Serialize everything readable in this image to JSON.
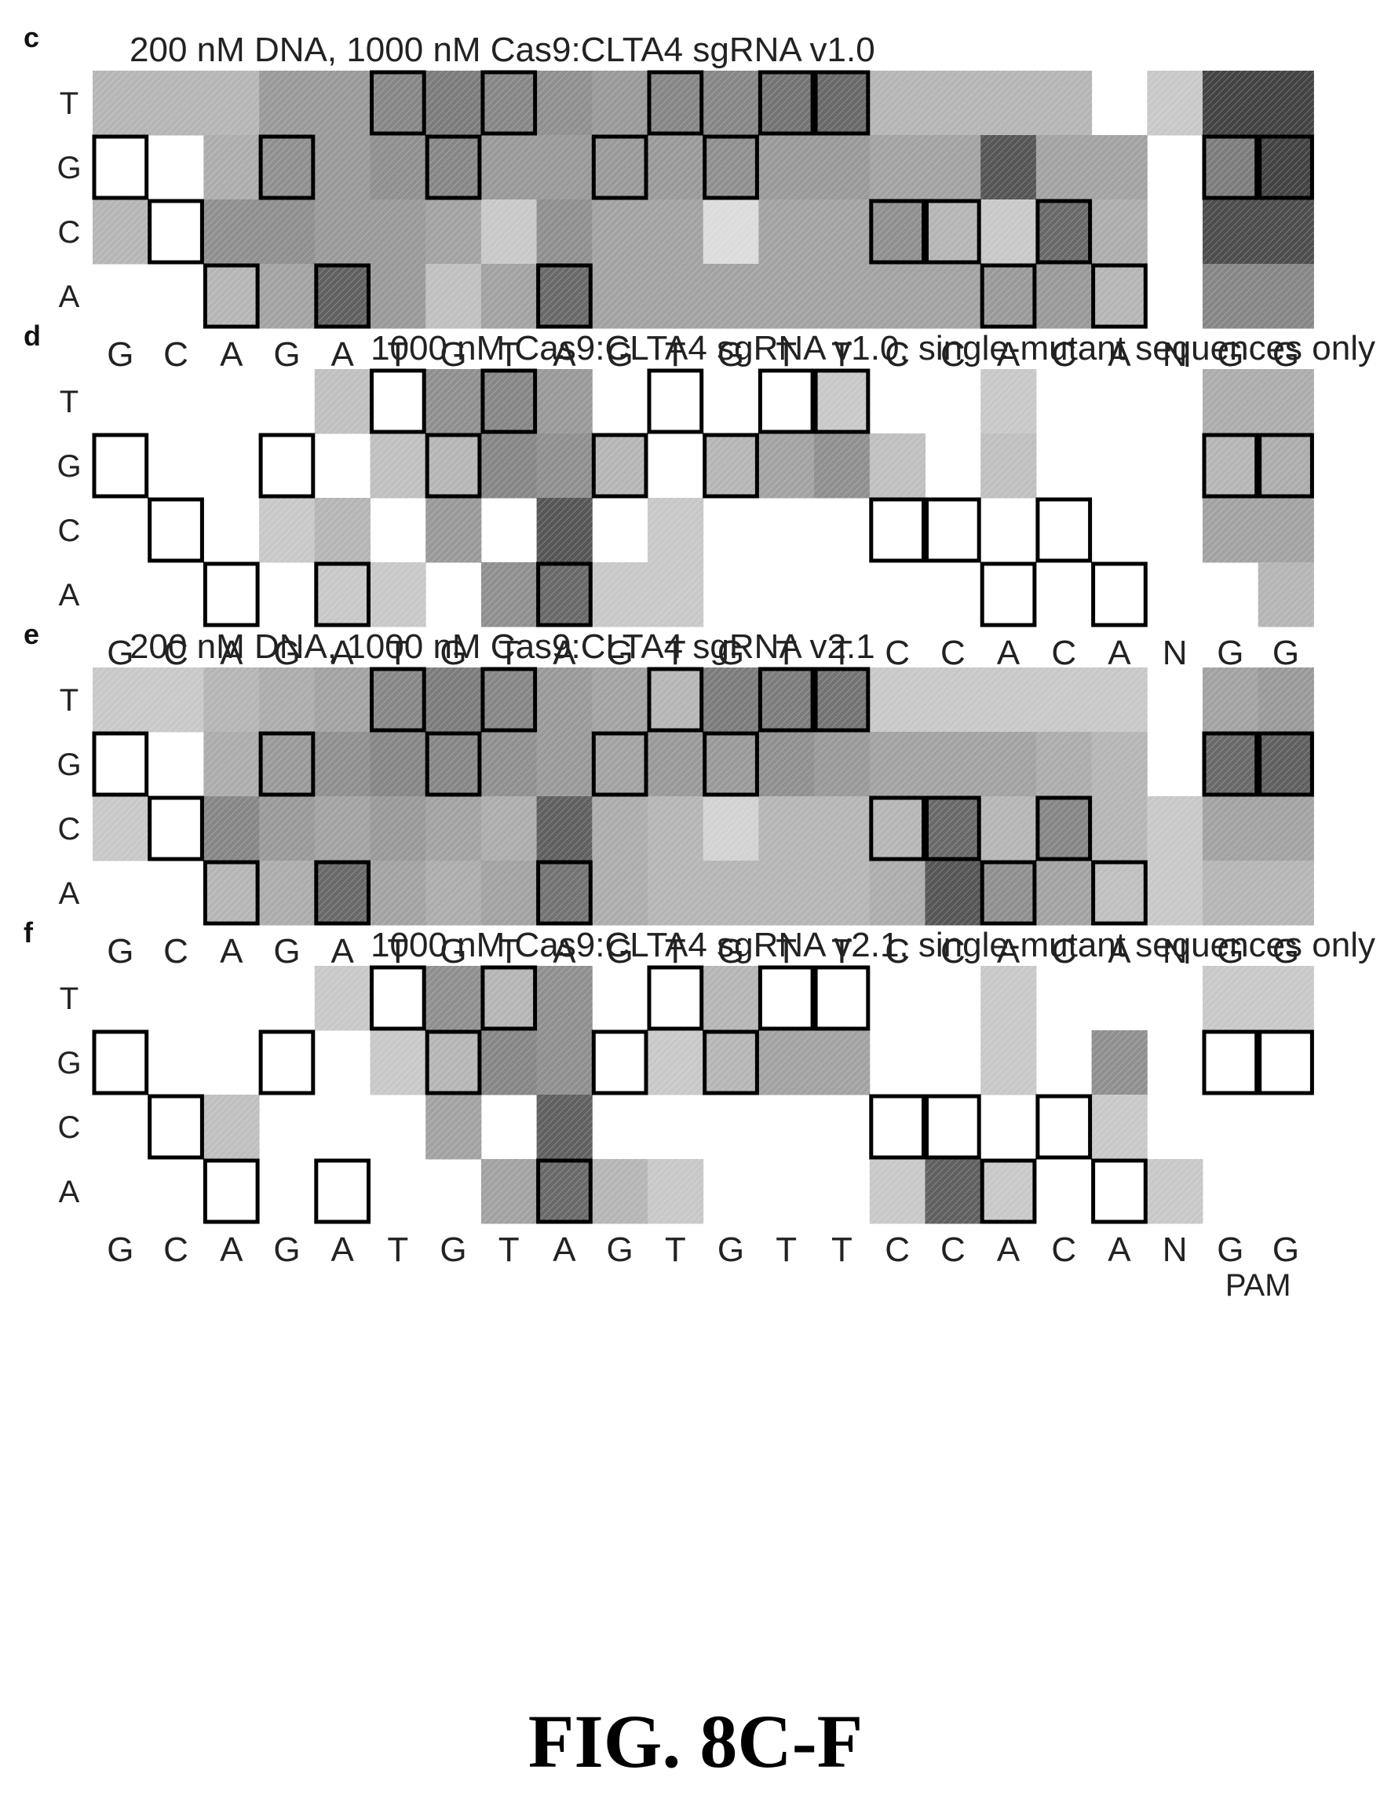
{
  "figure": {
    "caption": "FIG. 8C-F"
  },
  "chart_data": [
    {
      "type": "heatmap",
      "panel": "c",
      "title": "200 nM DNA, 1000 nM Cas9:CLTA4 sgRNA v1.0",
      "rows": [
        "T",
        "G",
        "C",
        "A"
      ],
      "columns": [
        "G",
        "C",
        "A",
        "G",
        "A",
        "T",
        "G",
        "T",
        "A",
        "G",
        "T",
        "G",
        "T",
        "T",
        "C",
        "C",
        "A",
        "C",
        "A",
        "N",
        "G",
        "G"
      ],
      "pam_label": "PAM",
      "values": [
        [
          0.3,
          0.3,
          0.3,
          0.45,
          0.45,
          0.55,
          0.6,
          0.55,
          0.5,
          0.45,
          0.55,
          0.55,
          0.65,
          0.7,
          0.3,
          0.3,
          0.3,
          0.3,
          0.0,
          0.2,
          0.9,
          0.9
        ],
        [
          0.0,
          0.0,
          0.35,
          0.5,
          0.45,
          0.5,
          0.55,
          0.45,
          0.45,
          0.45,
          0.45,
          0.5,
          0.45,
          0.45,
          0.4,
          0.4,
          0.8,
          0.4,
          0.4,
          0.0,
          0.6,
          0.9
        ],
        [
          0.3,
          0.0,
          0.5,
          0.5,
          0.45,
          0.45,
          0.4,
          0.2,
          0.5,
          0.4,
          0.4,
          0.1,
          0.4,
          0.4,
          0.5,
          0.3,
          0.2,
          0.7,
          0.35,
          0.0,
          0.85,
          0.85
        ],
        [
          0.0,
          0.0,
          0.3,
          0.4,
          0.75,
          0.45,
          0.25,
          0.4,
          0.7,
          0.4,
          0.4,
          0.4,
          0.4,
          0.4,
          0.4,
          0.4,
          0.45,
          0.45,
          0.3,
          0.0,
          0.55,
          0.55
        ]
      ],
      "reference": [
        1,
        2,
        3,
        1,
        3,
        0,
        1,
        0,
        3,
        1,
        0,
        1,
        0,
        0,
        2,
        2,
        3,
        2,
        3,
        -1,
        1,
        1
      ]
    },
    {
      "type": "heatmap",
      "panel": "d",
      "title": "1000 nM Cas9:CLTA4 sgRNA v1.0, single-mutant sequences only",
      "rows": [
        "T",
        "G",
        "C",
        "A"
      ],
      "columns": [
        "G",
        "C",
        "A",
        "G",
        "A",
        "T",
        "G",
        "T",
        "A",
        "G",
        "T",
        "G",
        "T",
        "T",
        "C",
        "C",
        "A",
        "C",
        "A",
        "N",
        "G",
        "G"
      ],
      "pam_label": "PAM",
      "values": [
        [
          0.0,
          0.0,
          0.0,
          0.0,
          0.25,
          0.0,
          0.5,
          0.55,
          0.45,
          0.0,
          0.0,
          0.0,
          0.0,
          0.2,
          0.0,
          0.0,
          0.2,
          0.0,
          0.0,
          0.0,
          0.35,
          0.35
        ],
        [
          0.0,
          0.0,
          0.0,
          0.0,
          0.0,
          0.25,
          0.3,
          0.55,
          0.5,
          0.3,
          0.0,
          0.3,
          0.4,
          0.5,
          0.25,
          0.0,
          0.25,
          0.0,
          0.0,
          0.0,
          0.3,
          0.35
        ],
        [
          0.0,
          0.0,
          0.0,
          0.2,
          0.3,
          0.0,
          0.45,
          0.0,
          0.8,
          0.0,
          0.2,
          0.0,
          0.0,
          0.0,
          0.0,
          0.0,
          0.0,
          0.0,
          0.0,
          0.0,
          0.4,
          0.4
        ],
        [
          0.0,
          0.0,
          0.0,
          0.0,
          0.2,
          0.2,
          0.0,
          0.5,
          0.7,
          0.2,
          0.2,
          0.0,
          0.0,
          0.0,
          0.0,
          0.0,
          0.0,
          0.0,
          0.0,
          0.0,
          0.0,
          0.3
        ]
      ],
      "reference": [
        1,
        2,
        3,
        1,
        3,
        0,
        1,
        0,
        3,
        1,
        0,
        1,
        0,
        0,
        2,
        2,
        3,
        2,
        3,
        -1,
        1,
        1
      ]
    },
    {
      "type": "heatmap",
      "panel": "e",
      "title": "200 nM DNA, 1000 nM Cas9:CLTA4 sgRNA v2.1",
      "rows": [
        "T",
        "G",
        "C",
        "A"
      ],
      "columns": [
        "G",
        "C",
        "A",
        "G",
        "A",
        "T",
        "G",
        "T",
        "A",
        "G",
        "T",
        "G",
        "T",
        "T",
        "C",
        "C",
        "A",
        "C",
        "A",
        "N",
        "G",
        "G"
      ],
      "pam_label": "PAM",
      "values": [
        [
          0.2,
          0.2,
          0.3,
          0.35,
          0.4,
          0.55,
          0.6,
          0.55,
          0.45,
          0.4,
          0.3,
          0.6,
          0.6,
          0.65,
          0.2,
          0.2,
          0.2,
          0.2,
          0.2,
          0.0,
          0.4,
          0.45
        ],
        [
          0.0,
          0.0,
          0.35,
          0.45,
          0.5,
          0.55,
          0.55,
          0.5,
          0.45,
          0.4,
          0.45,
          0.45,
          0.5,
          0.45,
          0.4,
          0.4,
          0.4,
          0.35,
          0.3,
          0.0,
          0.7,
          0.75
        ],
        [
          0.2,
          0.0,
          0.55,
          0.45,
          0.4,
          0.45,
          0.4,
          0.35,
          0.75,
          0.35,
          0.3,
          0.15,
          0.3,
          0.3,
          0.3,
          0.7,
          0.3,
          0.55,
          0.3,
          0.2,
          0.4,
          0.4
        ],
        [
          0.0,
          0.0,
          0.3,
          0.35,
          0.7,
          0.4,
          0.35,
          0.4,
          0.65,
          0.35,
          0.3,
          0.3,
          0.3,
          0.3,
          0.35,
          0.8,
          0.5,
          0.4,
          0.25,
          0.2,
          0.3,
          0.3
        ]
      ],
      "reference": [
        1,
        2,
        3,
        1,
        3,
        0,
        1,
        0,
        3,
        1,
        0,
        1,
        0,
        0,
        2,
        2,
        3,
        2,
        3,
        -1,
        1,
        1
      ]
    },
    {
      "type": "heatmap",
      "panel": "f",
      "title": "1000 nM Cas9:CLTA4 sgRNA v2.1, single-mutant sequences only",
      "rows": [
        "T",
        "G",
        "C",
        "A"
      ],
      "columns": [
        "G",
        "C",
        "A",
        "G",
        "A",
        "T",
        "G",
        "T",
        "A",
        "G",
        "T",
        "G",
        "T",
        "T",
        "C",
        "C",
        "A",
        "C",
        "A",
        "N",
        "G",
        "G"
      ],
      "pam_label": "PAM",
      "values": [
        [
          0.0,
          0.0,
          0.0,
          0.0,
          0.2,
          0.0,
          0.5,
          0.3,
          0.5,
          0.0,
          0.0,
          0.3,
          0.0,
          0.0,
          0.0,
          0.0,
          0.2,
          0.0,
          0.0,
          0.0,
          0.2,
          0.2
        ],
        [
          0.0,
          0.0,
          0.0,
          0.0,
          0.0,
          0.2,
          0.3,
          0.55,
          0.5,
          0.0,
          0.2,
          0.3,
          0.4,
          0.4,
          0.0,
          0.0,
          0.2,
          0.0,
          0.5,
          0.0,
          0.0,
          0.0
        ],
        [
          0.0,
          0.0,
          0.25,
          0.0,
          0.0,
          0.0,
          0.4,
          0.0,
          0.75,
          0.0,
          0.0,
          0.0,
          0.0,
          0.0,
          0.0,
          0.0,
          0.0,
          0.0,
          0.2,
          0.0,
          0.0,
          0.0
        ],
        [
          0.0,
          0.0,
          0.0,
          0.0,
          0.0,
          0.0,
          0.0,
          0.4,
          0.7,
          0.3,
          0.2,
          0.0,
          0.0,
          0.0,
          0.2,
          0.75,
          0.2,
          0.0,
          0.0,
          0.2,
          0.0,
          0.0
        ]
      ],
      "reference": [
        1,
        2,
        3,
        1,
        3,
        0,
        1,
        0,
        3,
        1,
        0,
        1,
        0,
        0,
        2,
        2,
        3,
        2,
        3,
        -1,
        1,
        1
      ]
    }
  ]
}
